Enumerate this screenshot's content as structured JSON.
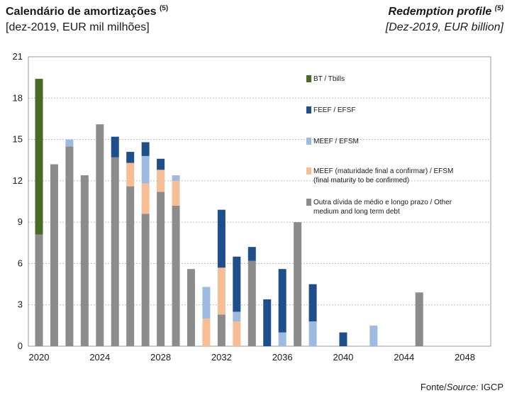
{
  "header": {
    "title_pt": "Calendário de amortizações",
    "title_pt_note": "(5)",
    "subtitle_pt": "[dez-2019, EUR mil milhões]",
    "title_en": "Redemption profile",
    "title_en_note": "(5)",
    "subtitle_en": "[Dez-2019, EUR billion]"
  },
  "source": {
    "prefix": "Fonte/",
    "italic": "Source:",
    "suffix": " IGCP"
  },
  "colors": {
    "bt": "#4a6b25",
    "feef": "#1f4e8c",
    "meef": "#9dbbe0",
    "meef_pending": "#f7bd95",
    "other": "#8c8c8c",
    "grid": "#bdbdbd",
    "frame": "#9a9a9a"
  },
  "chart_data": {
    "type": "bar",
    "stacked": true,
    "categories": [
      "2020",
      "2021",
      "2022",
      "2023",
      "2024",
      "2025",
      "2026",
      "2027",
      "2028",
      "2029",
      "2030",
      "2031",
      "2032",
      "2033",
      "2034",
      "2035",
      "2036",
      "2037",
      "2038",
      "2039",
      "2040",
      "2041",
      "2042",
      "2043",
      "2044",
      "2045",
      "2046",
      "2047",
      "2048",
      "2049"
    ],
    "xticks": [
      "2020",
      "2024",
      "2028",
      "2032",
      "2036",
      "2040",
      "2044",
      "2048"
    ],
    "yticks": [
      "0",
      "3",
      "6",
      "9",
      "12",
      "15",
      "18",
      "21"
    ],
    "ylim": [
      0,
      21
    ],
    "grid": true,
    "legend_position": "inside-right",
    "series": [
      {
        "name": "Outra dívida de médio e longo prazo / Other medium and long term debt",
        "key": "other",
        "values": [
          8.1,
          13.2,
          14.5,
          12.4,
          16.1,
          13.7,
          11.6,
          9.6,
          11.2,
          10.2,
          5.6,
          0,
          2.3,
          0,
          6.2,
          0,
          0,
          9.0,
          0,
          0,
          0,
          0,
          0,
          0,
          0,
          3.9,
          0,
          0,
          0,
          0
        ]
      },
      {
        "name": "MEEF (maturidade final a confirmar) / EFSM (final maturity to be confirmed)",
        "key": "meef_pending",
        "values": [
          0,
          0,
          0,
          0,
          0,
          0,
          1.7,
          2.2,
          1.6,
          1.8,
          0,
          2.0,
          3.4,
          1.8,
          0,
          0,
          0,
          0,
          0,
          0,
          0,
          0,
          0,
          0,
          0,
          0,
          0,
          0,
          0,
          0
        ]
      },
      {
        "name": "MEEF / EFSM",
        "key": "meef",
        "values": [
          0,
          0,
          0.5,
          0,
          0,
          0,
          0,
          2.0,
          0,
          0.4,
          0,
          2.3,
          0,
          0.7,
          0,
          0,
          1.0,
          0,
          1.8,
          0,
          0,
          0,
          1.5,
          0,
          0,
          0,
          0,
          0,
          0,
          0
        ]
      },
      {
        "name": "FEEF / EFSF",
        "key": "feef",
        "values": [
          0,
          0,
          0,
          0,
          0,
          1.5,
          0.8,
          1.0,
          0.8,
          0,
          0,
          0,
          4.2,
          4.0,
          1.0,
          3.4,
          4.6,
          0,
          2.7,
          0,
          1.0,
          0,
          0,
          0,
          0,
          0,
          0,
          0,
          0,
          0
        ]
      },
      {
        "name": "BT / Tbills",
        "key": "bt",
        "values": [
          11.3,
          0,
          0,
          0,
          0,
          0,
          0,
          0,
          0,
          0,
          0,
          0,
          0,
          0,
          0,
          0,
          0,
          0,
          0,
          0,
          0,
          0,
          0,
          0,
          0,
          0,
          0,
          0,
          0,
          0
        ]
      }
    ],
    "legend": [
      {
        "key": "bt",
        "lines": [
          "BT / Tbills"
        ]
      },
      {
        "key": "feef",
        "lines": [
          "FEEF / EFSF"
        ]
      },
      {
        "key": "meef",
        "lines": [
          "MEEF / EFSM"
        ]
      },
      {
        "key": "meef_pending",
        "lines": [
          "MEEF (maturidade final a confirmar) / EFSM",
          "(final maturity to be confirmed)"
        ]
      },
      {
        "key": "other",
        "lines": [
          "Outra dívida de médio e longo prazo / Other",
          "medium and long term debt"
        ]
      }
    ]
  }
}
